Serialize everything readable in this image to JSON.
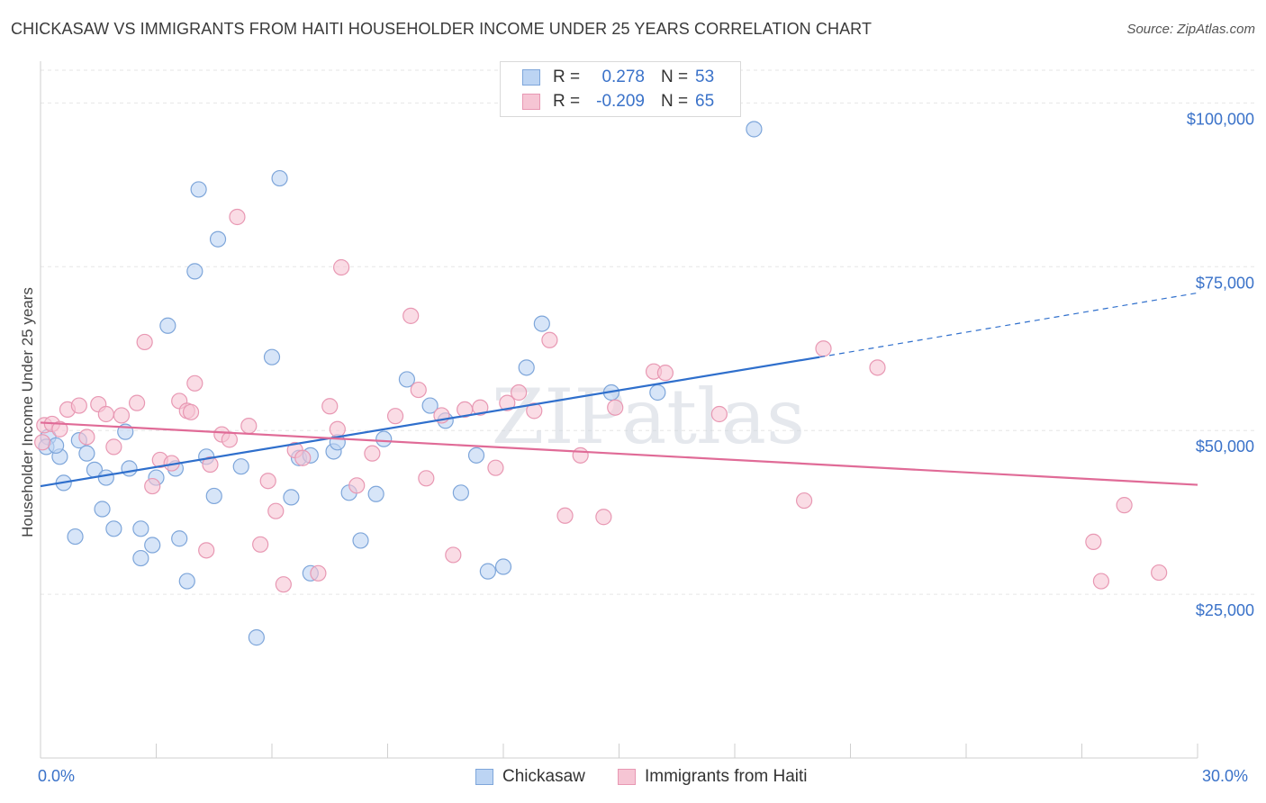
{
  "title": "CHICKASAW VS IMMIGRANTS FROM HAITI HOUSEHOLDER INCOME UNDER 25 YEARS CORRELATION CHART",
  "source": "Source: ZipAtlas.com",
  "watermark": "ZIPatlas",
  "colors": {
    "blue_fill": "#bcd4f3",
    "blue_stroke": "#7ea6da",
    "blue_line": "#2f6fcc",
    "pink_fill": "#f6c5d4",
    "pink_stroke": "#e898b3",
    "pink_line": "#e06b97",
    "axis_label": "#3a72c9",
    "grid": "#e6e6e6"
  },
  "legend": {
    "rows": [
      {
        "r_label": "R =",
        "r_value": "0.278",
        "n_label": "N =",
        "n_value": "53"
      },
      {
        "r_label": "R =",
        "r_value": "-0.209",
        "n_label": "N =",
        "n_value": "65"
      }
    ]
  },
  "bottom_legend": [
    "Chickasaw",
    "Immigrants from Haiti"
  ],
  "x_labels": {
    "left": "0.0%",
    "right": "30.0%"
  },
  "chart_data": {
    "type": "scatter",
    "title": "CHICKASAW VS IMMIGRANTS FROM HAITI HOUSEHOLDER INCOME UNDER 25 YEARS CORRELATION CHART",
    "xlabel": "",
    "ylabel": "Householder Income Under 25 years",
    "xlim": [
      0,
      30
    ],
    "ylim": [
      0,
      105000
    ],
    "y_ticks": [
      {
        "value": 25000,
        "label": "$25,000"
      },
      {
        "value": 50000,
        "label": "$50,000"
      },
      {
        "value": 75000,
        "label": "$75,000"
      },
      {
        "value": 100000,
        "label": "$100,000"
      }
    ],
    "grid": true,
    "series": [
      {
        "name": "Chickasaw",
        "color": "#bcd4f3",
        "trend": {
          "x": [
            0,
            20.2
          ],
          "y": [
            41500,
            61200
          ],
          "dashed_to": [
            30,
            71000
          ]
        },
        "points": [
          [
            0.2,
            49000
          ],
          [
            0.5,
            46000
          ],
          [
            0.6,
            42000
          ],
          [
            0.9,
            33800
          ],
          [
            1.0,
            48500
          ],
          [
            1.2,
            46500
          ],
          [
            1.4,
            44000
          ],
          [
            1.6,
            38000
          ],
          [
            1.7,
            42800
          ],
          [
            1.9,
            35000
          ],
          [
            2.2,
            49800
          ],
          [
            2.3,
            44200
          ],
          [
            2.6,
            35000
          ],
          [
            2.6,
            30500
          ],
          [
            2.9,
            32500
          ],
          [
            3.0,
            42800
          ],
          [
            3.3,
            66000
          ],
          [
            3.5,
            44200
          ],
          [
            3.6,
            33500
          ],
          [
            3.8,
            27000
          ],
          [
            4.0,
            74300
          ],
          [
            4.1,
            86800
          ],
          [
            4.3,
            46000
          ],
          [
            4.5,
            40000
          ],
          [
            4.6,
            79200
          ],
          [
            5.2,
            44500
          ],
          [
            5.6,
            18400
          ],
          [
            6.0,
            61200
          ],
          [
            6.2,
            88500
          ],
          [
            6.5,
            39800
          ],
          [
            6.7,
            45800
          ],
          [
            7.0,
            46200
          ],
          [
            7.0,
            28200
          ],
          [
            7.6,
            46800
          ],
          [
            7.7,
            48200
          ],
          [
            8.0,
            40500
          ],
          [
            8.3,
            33200
          ],
          [
            8.7,
            40300
          ],
          [
            8.9,
            48700
          ],
          [
            9.5,
            57800
          ],
          [
            10.1,
            53800
          ],
          [
            10.5,
            51500
          ],
          [
            10.9,
            40500
          ],
          [
            11.3,
            46200
          ],
          [
            11.6,
            28500
          ],
          [
            12.0,
            29200
          ],
          [
            12.6,
            59600
          ],
          [
            13.0,
            66300
          ],
          [
            14.8,
            55800
          ],
          [
            16.0,
            55800
          ],
          [
            18.5,
            96000
          ],
          [
            0.15,
            47500
          ],
          [
            0.4,
            47700
          ]
        ]
      },
      {
        "name": "Immigrants from Haiti",
        "color": "#f6c5d4",
        "trend": {
          "x": [
            0,
            30
          ],
          "y": [
            51200,
            41700
          ]
        },
        "points": [
          [
            0.1,
            50800
          ],
          [
            0.3,
            51000
          ],
          [
            0.5,
            50200
          ],
          [
            0.7,
            53200
          ],
          [
            1.0,
            53800
          ],
          [
            1.2,
            49000
          ],
          [
            1.5,
            54000
          ],
          [
            1.7,
            52500
          ],
          [
            1.9,
            47500
          ],
          [
            2.1,
            52300
          ],
          [
            2.5,
            54200
          ],
          [
            2.7,
            63500
          ],
          [
            2.9,
            41500
          ],
          [
            3.1,
            45500
          ],
          [
            3.4,
            45000
          ],
          [
            3.6,
            54500
          ],
          [
            3.8,
            53000
          ],
          [
            3.9,
            52800
          ],
          [
            4.0,
            57200
          ],
          [
            4.3,
            31700
          ],
          [
            4.4,
            44800
          ],
          [
            4.7,
            49400
          ],
          [
            4.9,
            48600
          ],
          [
            5.1,
            82600
          ],
          [
            5.4,
            50700
          ],
          [
            5.7,
            32600
          ],
          [
            5.9,
            42300
          ],
          [
            6.1,
            37700
          ],
          [
            6.3,
            26500
          ],
          [
            6.6,
            47000
          ],
          [
            6.8,
            45800
          ],
          [
            7.2,
            28200
          ],
          [
            7.5,
            53700
          ],
          [
            7.7,
            50200
          ],
          [
            7.8,
            74900
          ],
          [
            8.2,
            41600
          ],
          [
            8.6,
            46500
          ],
          [
            9.2,
            52200
          ],
          [
            9.6,
            67500
          ],
          [
            9.8,
            56200
          ],
          [
            10.0,
            42700
          ],
          [
            10.4,
            52300
          ],
          [
            10.7,
            31000
          ],
          [
            11.0,
            53200
          ],
          [
            11.4,
            53500
          ],
          [
            11.8,
            44300
          ],
          [
            12.1,
            54200
          ],
          [
            12.4,
            55800
          ],
          [
            12.8,
            53000
          ],
          [
            13.2,
            63800
          ],
          [
            13.6,
            37000
          ],
          [
            14.0,
            46200
          ],
          [
            14.6,
            36800
          ],
          [
            14.9,
            53500
          ],
          [
            15.9,
            59000
          ],
          [
            16.2,
            58800
          ],
          [
            17.6,
            52500
          ],
          [
            19.8,
            39300
          ],
          [
            20.3,
            62500
          ],
          [
            21.7,
            59600
          ],
          [
            27.3,
            33000
          ],
          [
            27.5,
            27000
          ],
          [
            28.1,
            38600
          ],
          [
            29.0,
            28300
          ],
          [
            0.05,
            48200
          ]
        ]
      }
    ]
  }
}
